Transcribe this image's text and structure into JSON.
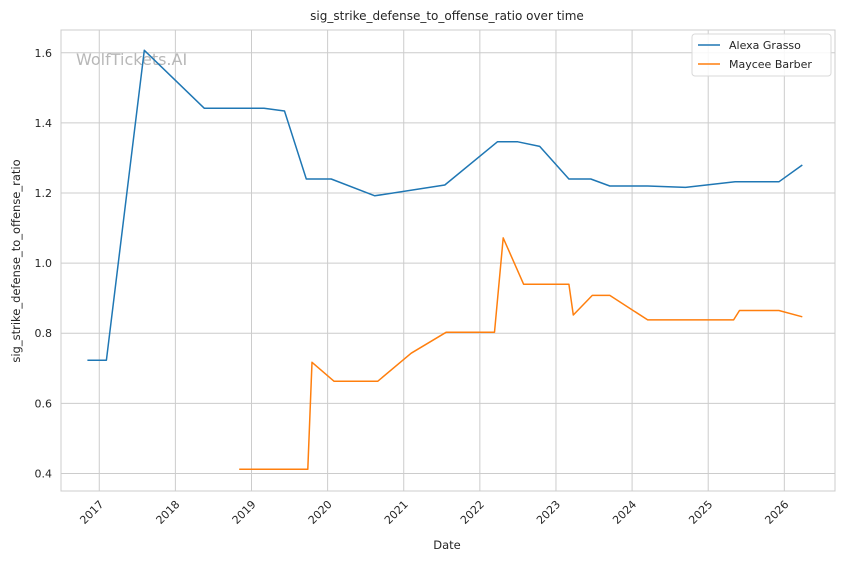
{
  "chart_data": {
    "type": "line",
    "title": "sig_strike_defense_to_offense_ratio over time",
    "xlabel": "Date",
    "ylabel": "sig_strike_defense_to_offense_ratio",
    "watermark": "WolfTickets.AI",
    "xlim": [
      "2016-07-01",
      "2026-09-01"
    ],
    "ylim": [
      0.35,
      1.665
    ],
    "x_ticks": [
      "2017",
      "2018",
      "2019",
      "2020",
      "2021",
      "2022",
      "2023",
      "2024",
      "2025",
      "2026"
    ],
    "y_ticks": [
      "0.4",
      "0.6",
      "0.8",
      "1.0",
      "1.2",
      "1.4",
      "1.6"
    ],
    "grid": true,
    "legend_position": "top-right",
    "series": [
      {
        "name": "Alexa Grasso",
        "color": "#1f77b4",
        "points": [
          [
            "2016-11-05",
            0.723
          ],
          [
            "2017-02-04",
            0.723
          ],
          [
            "2017-08-05",
            1.607
          ],
          [
            "2018-05-19",
            1.442
          ],
          [
            "2019-03-02",
            1.442
          ],
          [
            "2019-06-08",
            1.434
          ],
          [
            "2019-09-21",
            1.24
          ],
          [
            "2020-01-18",
            1.24
          ],
          [
            "2020-08-15",
            1.192
          ],
          [
            "2021-07-17",
            1.223
          ],
          [
            "2022-03-26",
            1.346
          ],
          [
            "2022-07-02",
            1.346
          ],
          [
            "2022-10-15",
            1.333
          ],
          [
            "2023-03-04",
            1.24
          ],
          [
            "2023-06-17",
            1.24
          ],
          [
            "2023-09-16",
            1.22
          ],
          [
            "2024-03-16",
            1.22
          ],
          [
            "2024-09-14",
            1.216
          ],
          [
            "2025-05-10",
            1.232
          ],
          [
            "2025-12-06",
            1.232
          ],
          [
            "2026-03-28",
            1.28
          ]
        ]
      },
      {
        "name": "Maycee Barber",
        "color": "#ff7f0e",
        "points": [
          [
            "2018-11-03",
            0.412
          ],
          [
            "2019-09-28",
            0.412
          ],
          [
            "2019-10-18",
            0.717
          ],
          [
            "2020-02-01",
            0.663
          ],
          [
            "2020-08-29",
            0.663
          ],
          [
            "2021-02-06",
            0.743
          ],
          [
            "2021-07-24",
            0.803
          ],
          [
            "2022-03-12",
            0.803
          ],
          [
            "2022-04-23",
            1.072
          ],
          [
            "2022-07-30",
            0.94
          ],
          [
            "2023-03-04",
            0.94
          ],
          [
            "2023-03-25",
            0.852
          ],
          [
            "2023-06-24",
            0.908
          ],
          [
            "2023-09-16",
            0.908
          ],
          [
            "2024-03-16",
            0.838
          ],
          [
            "2025-05-03",
            0.838
          ],
          [
            "2025-05-31",
            0.865
          ],
          [
            "2025-12-06",
            0.865
          ],
          [
            "2026-03-28",
            0.847
          ]
        ]
      }
    ]
  }
}
